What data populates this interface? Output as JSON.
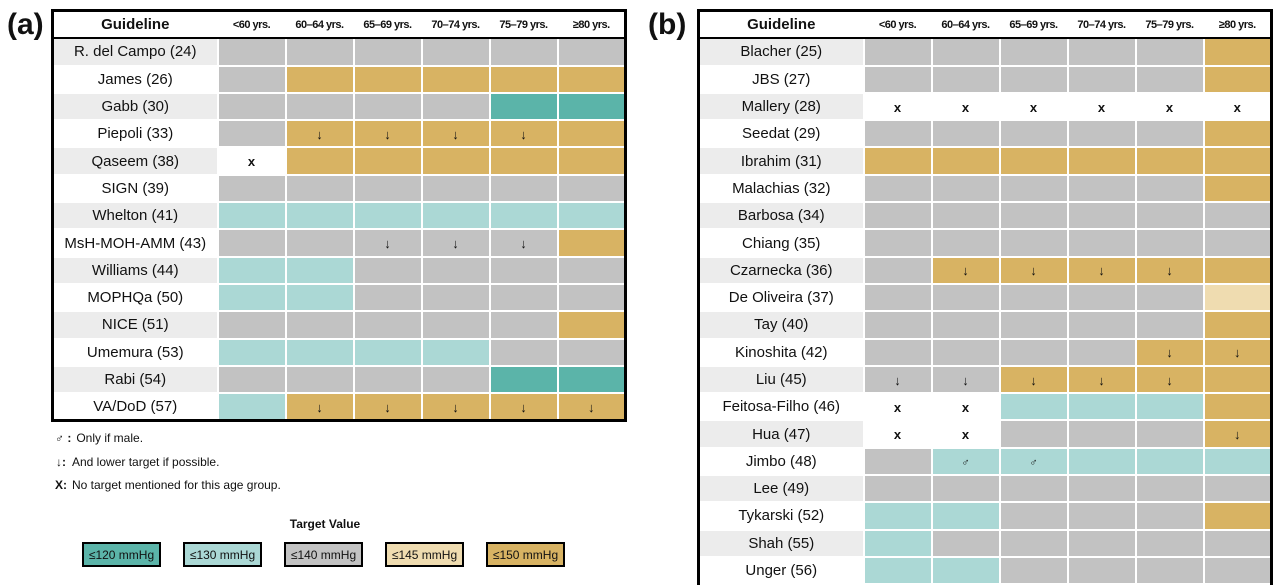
{
  "panel_a": {
    "label": "(a)",
    "header": {
      "guideline": "Guideline",
      "ages": [
        "<60 yrs.",
        "60–64 yrs.",
        "65–69 yrs.",
        "70–74 yrs.",
        "75–79 yrs.",
        "≥80 yrs."
      ]
    },
    "rows": [
      {
        "name": "R. del Campo (24)",
        "cells": [
          "t140",
          "t140",
          "t140",
          "t140",
          "t140",
          "t140"
        ],
        "marks": [
          "",
          "",
          "",
          "",
          "",
          ""
        ]
      },
      {
        "name": "James (26)",
        "cells": [
          "t140",
          "t150",
          "t150",
          "t150",
          "t150",
          "t150"
        ],
        "marks": [
          "",
          "",
          "",
          "",
          "",
          ""
        ]
      },
      {
        "name": "Gabb (30)",
        "cells": [
          "t140",
          "t140",
          "t140",
          "t140",
          "t120",
          "t120"
        ],
        "marks": [
          "",
          "",
          "",
          "",
          "",
          ""
        ]
      },
      {
        "name": "Piepoli (33)",
        "cells": [
          "t140",
          "t150",
          "t150",
          "t150",
          "t150",
          "t150"
        ],
        "marks": [
          "",
          "↓",
          "↓",
          "↓",
          "↓",
          ""
        ]
      },
      {
        "name": "Qaseem (38)",
        "cells": [
          "none",
          "t150",
          "t150",
          "t150",
          "t150",
          "t150"
        ],
        "marks": [
          "x",
          "",
          "",
          "",
          "",
          ""
        ]
      },
      {
        "name": "SIGN (39)",
        "cells": [
          "t140",
          "t140",
          "t140",
          "t140",
          "t140",
          "t140"
        ],
        "marks": [
          "",
          "",
          "",
          "",
          "",
          ""
        ]
      },
      {
        "name": "Whelton (41)",
        "cells": [
          "t130",
          "t130",
          "t130",
          "t130",
          "t130",
          "t130"
        ],
        "marks": [
          "",
          "",
          "",
          "",
          "",
          ""
        ]
      },
      {
        "name": "MsH-MOH-AMM (43)",
        "cells": [
          "t140",
          "t140",
          "t140",
          "t140",
          "t140",
          "t150"
        ],
        "marks": [
          "",
          "",
          "↓",
          "↓",
          "↓",
          ""
        ]
      },
      {
        "name": "Williams (44)",
        "cells": [
          "t130",
          "t130",
          "t140",
          "t140",
          "t140",
          "t140"
        ],
        "marks": [
          "",
          "",
          "",
          "",
          "",
          ""
        ]
      },
      {
        "name": "MOPHQa (50)",
        "cells": [
          "t130",
          "t130",
          "t140",
          "t140",
          "t140",
          "t140"
        ],
        "marks": [
          "",
          "",
          "",
          "",
          "",
          ""
        ]
      },
      {
        "name": "NICE (51)",
        "cells": [
          "t140",
          "t140",
          "t140",
          "t140",
          "t140",
          "t150"
        ],
        "marks": [
          "",
          "",
          "",
          "",
          "",
          ""
        ]
      },
      {
        "name": "Umemura (53)",
        "cells": [
          "t130",
          "t130",
          "t130",
          "t130",
          "t140",
          "t140"
        ],
        "marks": [
          "",
          "",
          "",
          "",
          "",
          ""
        ]
      },
      {
        "name": "Rabi (54)",
        "cells": [
          "t140",
          "t140",
          "t140",
          "t140",
          "t120",
          "t120"
        ],
        "marks": [
          "",
          "",
          "",
          "",
          "",
          ""
        ]
      },
      {
        "name": "VA/DoD (57)",
        "cells": [
          "t130",
          "t150",
          "t150",
          "t150",
          "t150",
          "t150"
        ],
        "marks": [
          "",
          "↓",
          "↓",
          "↓",
          "↓",
          "↓"
        ]
      }
    ]
  },
  "panel_b": {
    "label": "(b)",
    "header": {
      "guideline": "Guideline",
      "ages": [
        "<60 yrs.",
        "60–64 yrs.",
        "65–69 yrs.",
        "70–74 yrs.",
        "75–79 yrs.",
        "≥80 yrs."
      ]
    },
    "rows": [
      {
        "name": "Blacher (25)",
        "cells": [
          "t140",
          "t140",
          "t140",
          "t140",
          "t140",
          "t150"
        ],
        "marks": [
          "",
          "",
          "",
          "",
          "",
          ""
        ]
      },
      {
        "name": "JBS (27)",
        "cells": [
          "t140",
          "t140",
          "t140",
          "t140",
          "t140",
          "t150"
        ],
        "marks": [
          "",
          "",
          "",
          "",
          "",
          ""
        ]
      },
      {
        "name": "Mallery (28)",
        "cells": [
          "none",
          "none",
          "none",
          "none",
          "none",
          "none"
        ],
        "marks": [
          "x",
          "x",
          "x",
          "x",
          "x",
          "x"
        ]
      },
      {
        "name": "Seedat (29)",
        "cells": [
          "t140",
          "t140",
          "t140",
          "t140",
          "t140",
          "t150"
        ],
        "marks": [
          "",
          "",
          "",
          "",
          "",
          ""
        ]
      },
      {
        "name": "Ibrahim (31)",
        "cells": [
          "t150",
          "t150",
          "t150",
          "t150",
          "t150",
          "t150"
        ],
        "marks": [
          "",
          "",
          "",
          "",
          "",
          ""
        ]
      },
      {
        "name": "Malachias (32)",
        "cells": [
          "t140",
          "t140",
          "t140",
          "t140",
          "t140",
          "t150"
        ],
        "marks": [
          "",
          "",
          "",
          "",
          "",
          ""
        ]
      },
      {
        "name": "Barbosa (34)",
        "cells": [
          "t140",
          "t140",
          "t140",
          "t140",
          "t140",
          "t140"
        ],
        "marks": [
          "",
          "",
          "",
          "",
          "",
          ""
        ]
      },
      {
        "name": "Chiang (35)",
        "cells": [
          "t140",
          "t140",
          "t140",
          "t140",
          "t140",
          "t140"
        ],
        "marks": [
          "",
          "",
          "",
          "",
          "",
          ""
        ]
      },
      {
        "name": "Czarnecka (36)",
        "cells": [
          "t140",
          "t150",
          "t150",
          "t150",
          "t150",
          "t150"
        ],
        "marks": [
          "",
          "↓",
          "↓",
          "↓",
          "↓",
          ""
        ]
      },
      {
        "name": "De Oliveira (37)",
        "cells": [
          "t140",
          "t140",
          "t140",
          "t140",
          "t140",
          "t145"
        ],
        "marks": [
          "",
          "",
          "",
          "",
          "",
          ""
        ]
      },
      {
        "name": "Tay (40)",
        "cells": [
          "t140",
          "t140",
          "t140",
          "t140",
          "t140",
          "t150"
        ],
        "marks": [
          "",
          "",
          "",
          "",
          "",
          ""
        ]
      },
      {
        "name": "Kinoshita (42)",
        "cells": [
          "t140",
          "t140",
          "t140",
          "t140",
          "t150",
          "t150"
        ],
        "marks": [
          "",
          "",
          "",
          "",
          "↓",
          "↓"
        ]
      },
      {
        "name": "Liu (45)",
        "cells": [
          "t140",
          "t140",
          "t150",
          "t150",
          "t150",
          "t150"
        ],
        "marks": [
          "↓",
          "↓",
          "↓",
          "↓",
          "↓",
          ""
        ]
      },
      {
        "name": "Feitosa-Filho (46)",
        "cells": [
          "none",
          "none",
          "t130",
          "t130",
          "t130",
          "t150"
        ],
        "marks": [
          "x",
          "x",
          "",
          "",
          "",
          ""
        ]
      },
      {
        "name": "Hua (47)",
        "cells": [
          "none",
          "none",
          "t140",
          "t140",
          "t140",
          "t150"
        ],
        "marks": [
          "x",
          "x",
          "",
          "",
          "",
          "↓"
        ]
      },
      {
        "name": "Jimbo (48)",
        "cells": [
          "t140",
          "t130",
          "t130",
          "t130",
          "t130",
          "t130"
        ],
        "marks": [
          "",
          "♂",
          "♂",
          "",
          "",
          ""
        ]
      },
      {
        "name": "Lee (49)",
        "cells": [
          "t140",
          "t140",
          "t140",
          "t140",
          "t140",
          "t140"
        ],
        "marks": [
          "",
          "",
          "",
          "",
          "",
          ""
        ]
      },
      {
        "name": "Tykarski (52)",
        "cells": [
          "t130",
          "t130",
          "t140",
          "t140",
          "t140",
          "t150"
        ],
        "marks": [
          "",
          "",
          "",
          "",
          "",
          ""
        ]
      },
      {
        "name": "Shah (55)",
        "cells": [
          "t130",
          "t140",
          "t140",
          "t140",
          "t140",
          "t140"
        ],
        "marks": [
          "",
          "",
          "",
          "",
          "",
          ""
        ]
      },
      {
        "name": "Unger (56)",
        "cells": [
          "t130",
          "t130",
          "t140",
          "t140",
          "t140",
          "t140"
        ],
        "marks": [
          "",
          "",
          "",
          "",
          "",
          ""
        ]
      }
    ]
  },
  "notes": [
    {
      "key": "♂ :",
      "text": "Only if male."
    },
    {
      "key": "↓:",
      "text": "And lower target if possible."
    },
    {
      "key": "X:",
      "text": "No target mentioned for this age group."
    }
  ],
  "legend": {
    "title": "Target Value",
    "items": [
      {
        "id": "t120",
        "label": "≤120 mmHg",
        "color": "#5bb4a9"
      },
      {
        "id": "t130",
        "label": "≤130 mmHg",
        "color": "#abd8d5"
      },
      {
        "id": "t140",
        "label": "≤140 mmHg",
        "color": "#c2c2c2"
      },
      {
        "id": "t145",
        "label": "≤145 mmHg",
        "color": "#efdcb0"
      },
      {
        "id": "t150",
        "label": "≤150 mmHg",
        "color": "#d8b363"
      }
    ]
  },
  "chart_data": [
    {
      "type": "heatmap",
      "title": "(a)",
      "columns": [
        "<60 yrs.",
        "60–64 yrs.",
        "65–69 yrs.",
        "70–74 yrs.",
        "75–79 yrs.",
        "≥80 yrs."
      ],
      "value_unit": "mmHg",
      "rows": [
        {
          "guideline": "R. del Campo (24)",
          "targets": [
            140,
            140,
            140,
            140,
            140,
            140
          ]
        },
        {
          "guideline": "James (26)",
          "targets": [
            140,
            150,
            150,
            150,
            150,
            150
          ]
        },
        {
          "guideline": "Gabb (30)",
          "targets": [
            140,
            140,
            140,
            140,
            120,
            120
          ]
        },
        {
          "guideline": "Piepoli (33)",
          "targets": [
            140,
            150,
            150,
            150,
            150,
            150
          ]
        },
        {
          "guideline": "Qaseem (38)",
          "targets": [
            null,
            150,
            150,
            150,
            150,
            150
          ]
        },
        {
          "guideline": "SIGN (39)",
          "targets": [
            140,
            140,
            140,
            140,
            140,
            140
          ]
        },
        {
          "guideline": "Whelton (41)",
          "targets": [
            130,
            130,
            130,
            130,
            130,
            130
          ]
        },
        {
          "guideline": "MsH-MOH-AMM (43)",
          "targets": [
            140,
            140,
            140,
            140,
            140,
            150
          ]
        },
        {
          "guideline": "Williams (44)",
          "targets": [
            130,
            130,
            140,
            140,
            140,
            140
          ]
        },
        {
          "guideline": "MOPHQa (50)",
          "targets": [
            130,
            130,
            140,
            140,
            140,
            140
          ]
        },
        {
          "guideline": "NICE (51)",
          "targets": [
            140,
            140,
            140,
            140,
            140,
            150
          ]
        },
        {
          "guideline": "Umemura (53)",
          "targets": [
            130,
            130,
            130,
            130,
            140,
            140
          ]
        },
        {
          "guideline": "Rabi (54)",
          "targets": [
            140,
            140,
            140,
            140,
            120,
            120
          ]
        },
        {
          "guideline": "VA/DoD (57)",
          "targets": [
            130,
            150,
            150,
            150,
            150,
            150
          ]
        }
      ]
    },
    {
      "type": "heatmap",
      "title": "(b)",
      "columns": [
        "<60 yrs.",
        "60–64 yrs.",
        "65–69 yrs.",
        "70–74 yrs.",
        "75–79 yrs.",
        "≥80 yrs."
      ],
      "value_unit": "mmHg",
      "rows": [
        {
          "guideline": "Blacher (25)",
          "targets": [
            140,
            140,
            140,
            140,
            140,
            150
          ]
        },
        {
          "guideline": "JBS (27)",
          "targets": [
            140,
            140,
            140,
            140,
            140,
            150
          ]
        },
        {
          "guideline": "Mallery (28)",
          "targets": [
            null,
            null,
            null,
            null,
            null,
            null
          ]
        },
        {
          "guideline": "Seedat (29)",
          "targets": [
            140,
            140,
            140,
            140,
            140,
            150
          ]
        },
        {
          "guideline": "Ibrahim (31)",
          "targets": [
            150,
            150,
            150,
            150,
            150,
            150
          ]
        },
        {
          "guideline": "Malachias (32)",
          "targets": [
            140,
            140,
            140,
            140,
            140,
            150
          ]
        },
        {
          "guideline": "Barbosa (34)",
          "targets": [
            140,
            140,
            140,
            140,
            140,
            140
          ]
        },
        {
          "guideline": "Chiang (35)",
          "targets": [
            140,
            140,
            140,
            140,
            140,
            140
          ]
        },
        {
          "guideline": "Czarnecka (36)",
          "targets": [
            140,
            150,
            150,
            150,
            150,
            150
          ]
        },
        {
          "guideline": "De Oliveira (37)",
          "targets": [
            140,
            140,
            140,
            140,
            140,
            145
          ]
        },
        {
          "guideline": "Tay (40)",
          "targets": [
            140,
            140,
            140,
            140,
            140,
            150
          ]
        },
        {
          "guideline": "Kinoshita (42)",
          "targets": [
            140,
            140,
            140,
            140,
            150,
            150
          ]
        },
        {
          "guideline": "Liu (45)",
          "targets": [
            140,
            140,
            150,
            150,
            150,
            150
          ]
        },
        {
          "guideline": "Feitosa-Filho (46)",
          "targets": [
            null,
            null,
            130,
            130,
            130,
            150
          ]
        },
        {
          "guideline": "Hua (47)",
          "targets": [
            null,
            null,
            140,
            140,
            140,
            150
          ]
        },
        {
          "guideline": "Jimbo (48)",
          "targets": [
            140,
            130,
            130,
            130,
            130,
            130
          ]
        },
        {
          "guideline": "Lee (49)",
          "targets": [
            140,
            140,
            140,
            140,
            140,
            140
          ]
        },
        {
          "guideline": "Tykarski (52)",
          "targets": [
            130,
            130,
            140,
            140,
            140,
            150
          ]
        },
        {
          "guideline": "Shah (55)",
          "targets": [
            130,
            140,
            140,
            140,
            140,
            140
          ]
        },
        {
          "guideline": "Unger (56)",
          "targets": [
            130,
            130,
            140,
            140,
            140,
            140
          ]
        }
      ]
    }
  ]
}
